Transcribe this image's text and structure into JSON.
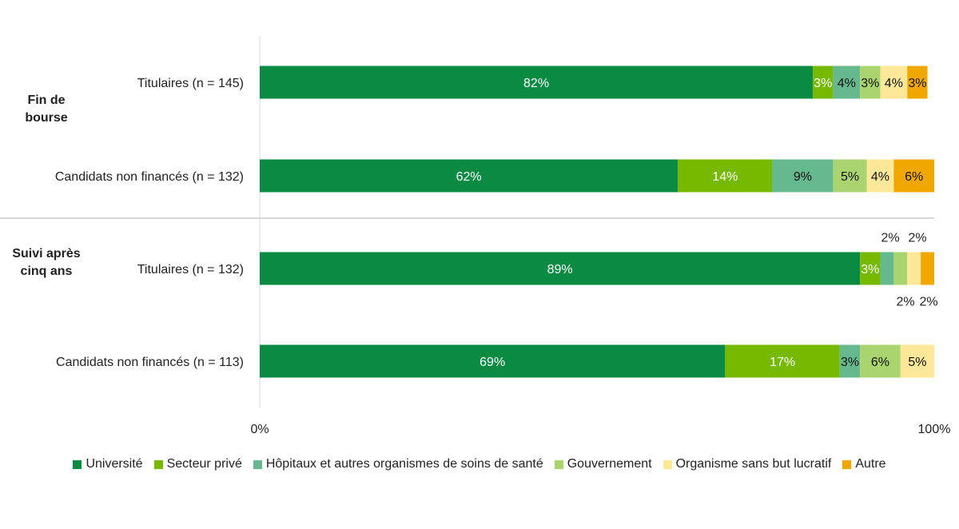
{
  "chart_data": {
    "type": "bar",
    "orientation": "horizontal",
    "stacked": "100%",
    "title": "",
    "xlabel": "",
    "ylabel": "",
    "xlim": [
      0,
      100
    ],
    "x_ticks": [
      "0%",
      "100%"
    ],
    "groups": [
      {
        "label": "Fin de bourse",
        "rows": [
          0,
          1
        ]
      },
      {
        "label": "Suivi après cinq ans",
        "rows": [
          2,
          3
        ]
      }
    ],
    "categories": [
      "Titulaires (n = 145)",
      "Candidats non financés (n = 132)",
      "Titulaires (n = 132)",
      "Candidats non financés (n = 113)"
    ],
    "series": [
      {
        "name": "Université",
        "color": "#0a8a43",
        "label_color": "#ffffff",
        "values": [
          82,
          62,
          89,
          69
        ],
        "labels": [
          "82%",
          "62%",
          "89%",
          "69%"
        ]
      },
      {
        "name": "Secteur privé",
        "color": "#76b900",
        "label_color": "#ffffff",
        "values": [
          3,
          14,
          3,
          17
        ],
        "labels": [
          "3%",
          "14%",
          "3%",
          "17%"
        ]
      },
      {
        "name": "Hôpitaux et autres organismes de soins de santé",
        "color": "#66b98e",
        "label_color": "#111111",
        "values": [
          4,
          9,
          2,
          3
        ],
        "labels": [
          "4%",
          "9%",
          "",
          "3%"
        ]
      },
      {
        "name": "Gouvernement",
        "color": "#a9d46f",
        "label_color": "#111111",
        "values": [
          3,
          5,
          2,
          6
        ],
        "labels": [
          "3%",
          "5%",
          "",
          "6%"
        ]
      },
      {
        "name": "Organisme sans but lucratif",
        "color": "#fde89a",
        "label_color": "#111111",
        "values": [
          4,
          4,
          2,
          5
        ],
        "labels": [
          "4%",
          "4%",
          "",
          "5%"
        ]
      },
      {
        "name": "Autre",
        "color": "#f0a800",
        "label_color": "#111111",
        "values": [
          3,
          6,
          2,
          0
        ],
        "labels": [
          "3%",
          "6%",
          "",
          ""
        ]
      }
    ],
    "outside_labels": {
      "row": 2,
      "above": [
        "2%",
        "2%"
      ],
      "below": [
        "2%",
        "2%"
      ]
    },
    "legend_position": "bottom",
    "grid": false
  }
}
